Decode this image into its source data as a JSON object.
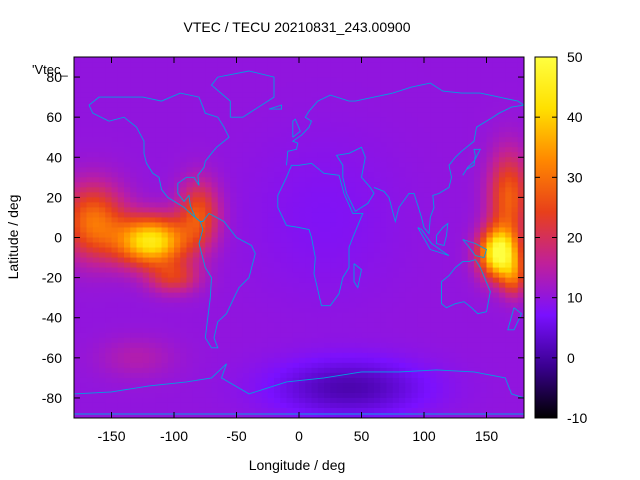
{
  "chart_data": {
    "type": "heatmap",
    "title": "VTEC / TECU 20210831_243.00900",
    "xlabel": "Longitude / deg",
    "ylabel": "Latitude / deg",
    "xlim": [
      -180,
      180
    ],
    "ylim": [
      -90,
      90
    ],
    "xticks": [
      -150,
      -100,
      -50,
      0,
      50,
      100,
      150
    ],
    "yticks": [
      -80,
      -60,
      -40,
      -20,
      0,
      20,
      40,
      60,
      80
    ],
    "colorbar": {
      "range": [
        -10,
        50
      ],
      "ticks": [
        -10,
        0,
        10,
        20,
        30,
        40,
        50
      ],
      "colormap": "black-purple-red-orange-yellow",
      "stops": [
        "#000000",
        "#3a0090",
        "#7a10ff",
        "#c0209a",
        "#e8401a",
        "#ff8800",
        "#ffe000",
        "#ffff40"
      ]
    },
    "legend_text": "'Vtec_",
    "legend_placement": "top-left",
    "coastline_color": "#00a0e0",
    "grid": false,
    "features": [
      {
        "lon": -120,
        "lat": -3,
        "peak_value": 45,
        "description": "equatorial anomaly Pacific east"
      },
      {
        "lon": 158,
        "lat": -7,
        "peak_value": 50,
        "description": "equatorial anomaly west Pacific"
      },
      {
        "lon": 40,
        "lat": -75,
        "peak_value": 2,
        "description": "Antarctic low"
      }
    ],
    "background_value": 10
  }
}
